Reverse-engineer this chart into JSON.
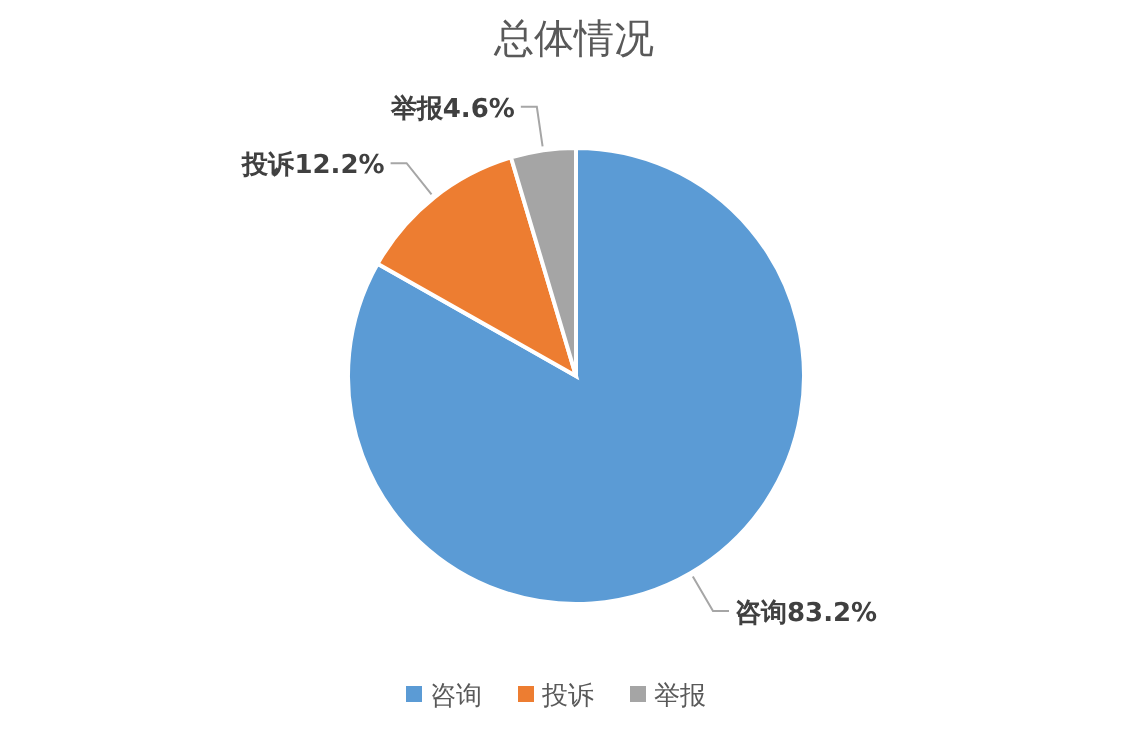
{
  "chart_data": {
    "type": "pie",
    "title": "总体情况",
    "categories": [
      "咨询",
      "投诉",
      "举报"
    ],
    "values": [
      83.2,
      12.2,
      4.6
    ],
    "value_labels": [
      "83.2%",
      "12.2%",
      "4.6%"
    ],
    "colors": [
      "#5b9bd5",
      "#ed7d31",
      "#a5a5a5"
    ],
    "legend": "bottom"
  }
}
